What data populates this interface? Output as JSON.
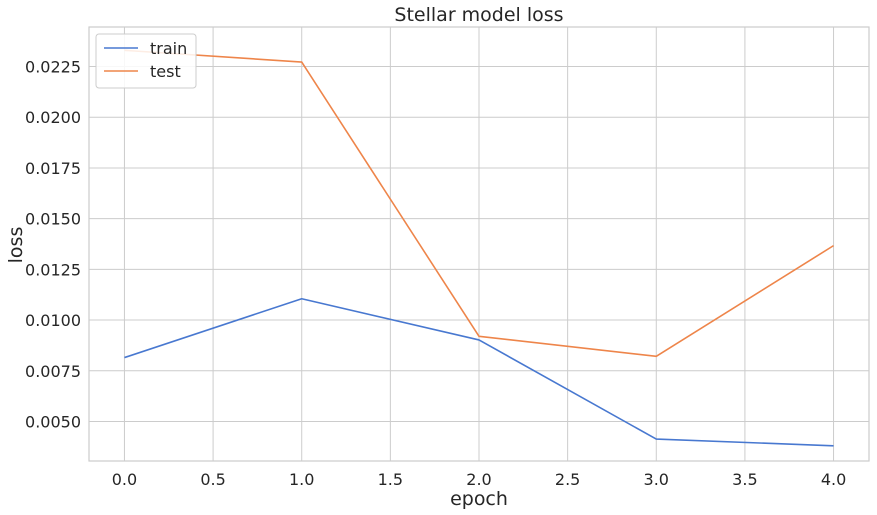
{
  "chart_data": {
    "type": "line",
    "title": "Stellar model loss",
    "xlabel": "epoch",
    "ylabel": "loss",
    "x": [
      0,
      1,
      2,
      3,
      4
    ],
    "series": [
      {
        "name": "train",
        "color": "#4878d0",
        "values": [
          0.00815,
          0.01105,
          0.00902,
          0.00413,
          0.0038
        ]
      },
      {
        "name": "test",
        "color": "#ee854a",
        "values": [
          0.0233,
          0.02272,
          0.0092,
          0.00821,
          0.01367
        ]
      }
    ],
    "xlim": [
      -0.2,
      4.2
    ],
    "ylim": [
      0.00305,
      0.02445
    ],
    "xticks": [
      "0.0",
      "0.5",
      "1.0",
      "1.5",
      "2.0",
      "2.5",
      "3.0",
      "3.5",
      "4.0"
    ],
    "yticks": [
      "0.0050",
      "0.0075",
      "0.0100",
      "0.0125",
      "0.0150",
      "0.0175",
      "0.0200",
      "0.0225"
    ],
    "grid": true,
    "legend_position": "top-left"
  }
}
